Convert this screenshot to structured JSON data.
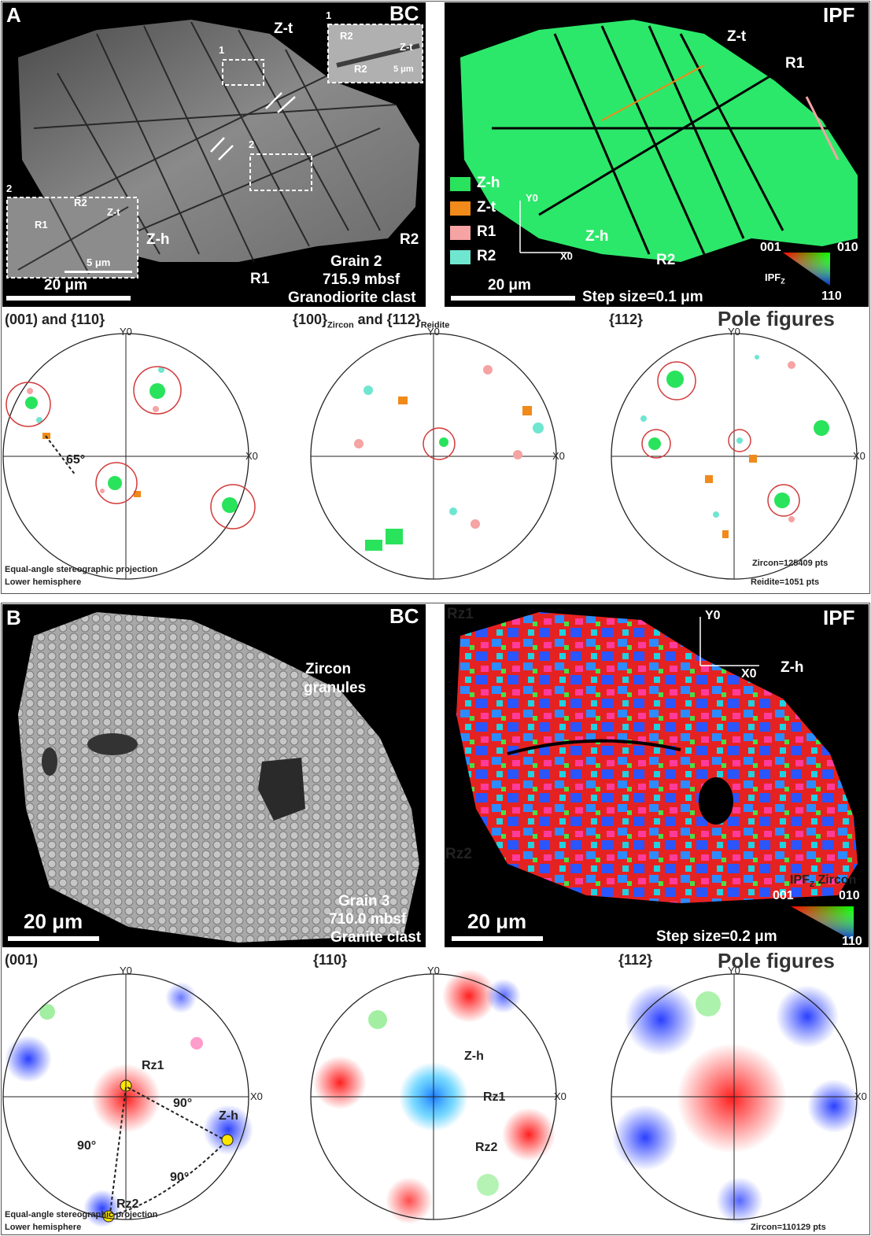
{
  "panelA": {
    "letter": "A",
    "bc": {
      "tag": "BC",
      "labels": {
        "zt": "Z-t",
        "zh": "Z-h",
        "r1": "R1",
        "r2": "R2",
        "box1": "1",
        "box2": "2"
      },
      "inset1": {
        "num": "1",
        "r2": "R2",
        "r2b": "R2",
        "zt": "Z-t",
        "scale": "5 μm"
      },
      "inset2": {
        "num": "2",
        "r1": "R1",
        "r2": "R2",
        "zt": "Z-t",
        "scale": "5 μm"
      },
      "scale": "20 μm",
      "caption": [
        "Grain 2",
        "715.9 mbsf",
        "Granodiorite clast"
      ]
    },
    "ipf": {
      "tag": "IPF",
      "labels": {
        "zt": "Z-t",
        "r1": "R1",
        "zh": "Z-h",
        "r2": "R2"
      },
      "legend": [
        {
          "label": "Z-h",
          "color": "#29e35c"
        },
        {
          "label": "Z-t",
          "color": "#f08a1a"
        },
        {
          "label": "R1",
          "color": "#f5a3a3"
        },
        {
          "label": "R2",
          "color": "#6fe6d0"
        }
      ],
      "axes": {
        "y": "Y0",
        "x": "X0"
      },
      "key": {
        "c001": "001",
        "c010": "010",
        "c110": "110",
        "title": "IPF",
        "sub": "Z"
      },
      "scale": "20 μm",
      "step": "Step size=0.1 μm"
    },
    "poles": {
      "big_title": "Pole figures",
      "fig1": {
        "title": "(001) and {110}"
      },
      "fig2": {
        "title_main": "{100}",
        "title_sub1": "Zircon",
        "title_mid": " and {112}",
        "title_sub2": "Reidite"
      },
      "fig3": {
        "title": "{112}"
      },
      "projection": [
        "Equal-angle stereographic projection",
        "Lower hemisphere"
      ],
      "counts": [
        "Zircon=125409 pts",
        "Reidite=1051 pts"
      ],
      "angle": "65°"
    }
  },
  "panelB": {
    "letter": "B",
    "bc": {
      "tag": "BC",
      "granules": [
        "Zircon",
        "granules"
      ],
      "scale": "20 μm",
      "caption": [
        "Grain 3",
        "710.0 mbsf",
        "Granite clast"
      ]
    },
    "ipf": {
      "tag": "IPF",
      "labels": {
        "rz1": "Rz1",
        "rz2": "Rz2",
        "zh": "Z-h"
      },
      "axes": {
        "y": "Y0",
        "x": "X0"
      },
      "key": {
        "title": "IPF",
        "sub": "Z",
        "mineral": " Zircon",
        "c001": "001",
        "c010": "010",
        "c110": "110"
      },
      "scale": "20 μm",
      "step": "Step size=0.2 μm"
    },
    "poles": {
      "big_title": "Pole figures",
      "fig1": {
        "title": "(001)"
      },
      "fig2": {
        "title": "{110}"
      },
      "fig3": {
        "title": "{112}"
      },
      "projection": [
        "Equal-angle stereographic projection",
        "Lower hemisphere"
      ],
      "counts": [
        "Zircon=110129 pts"
      ],
      "rz1": "Rz1",
      "rz2": "Rz2",
      "zh": "Z-h",
      "angle": "90°"
    }
  },
  "axis_y0": "Y0",
  "axis_x0": "X0"
}
